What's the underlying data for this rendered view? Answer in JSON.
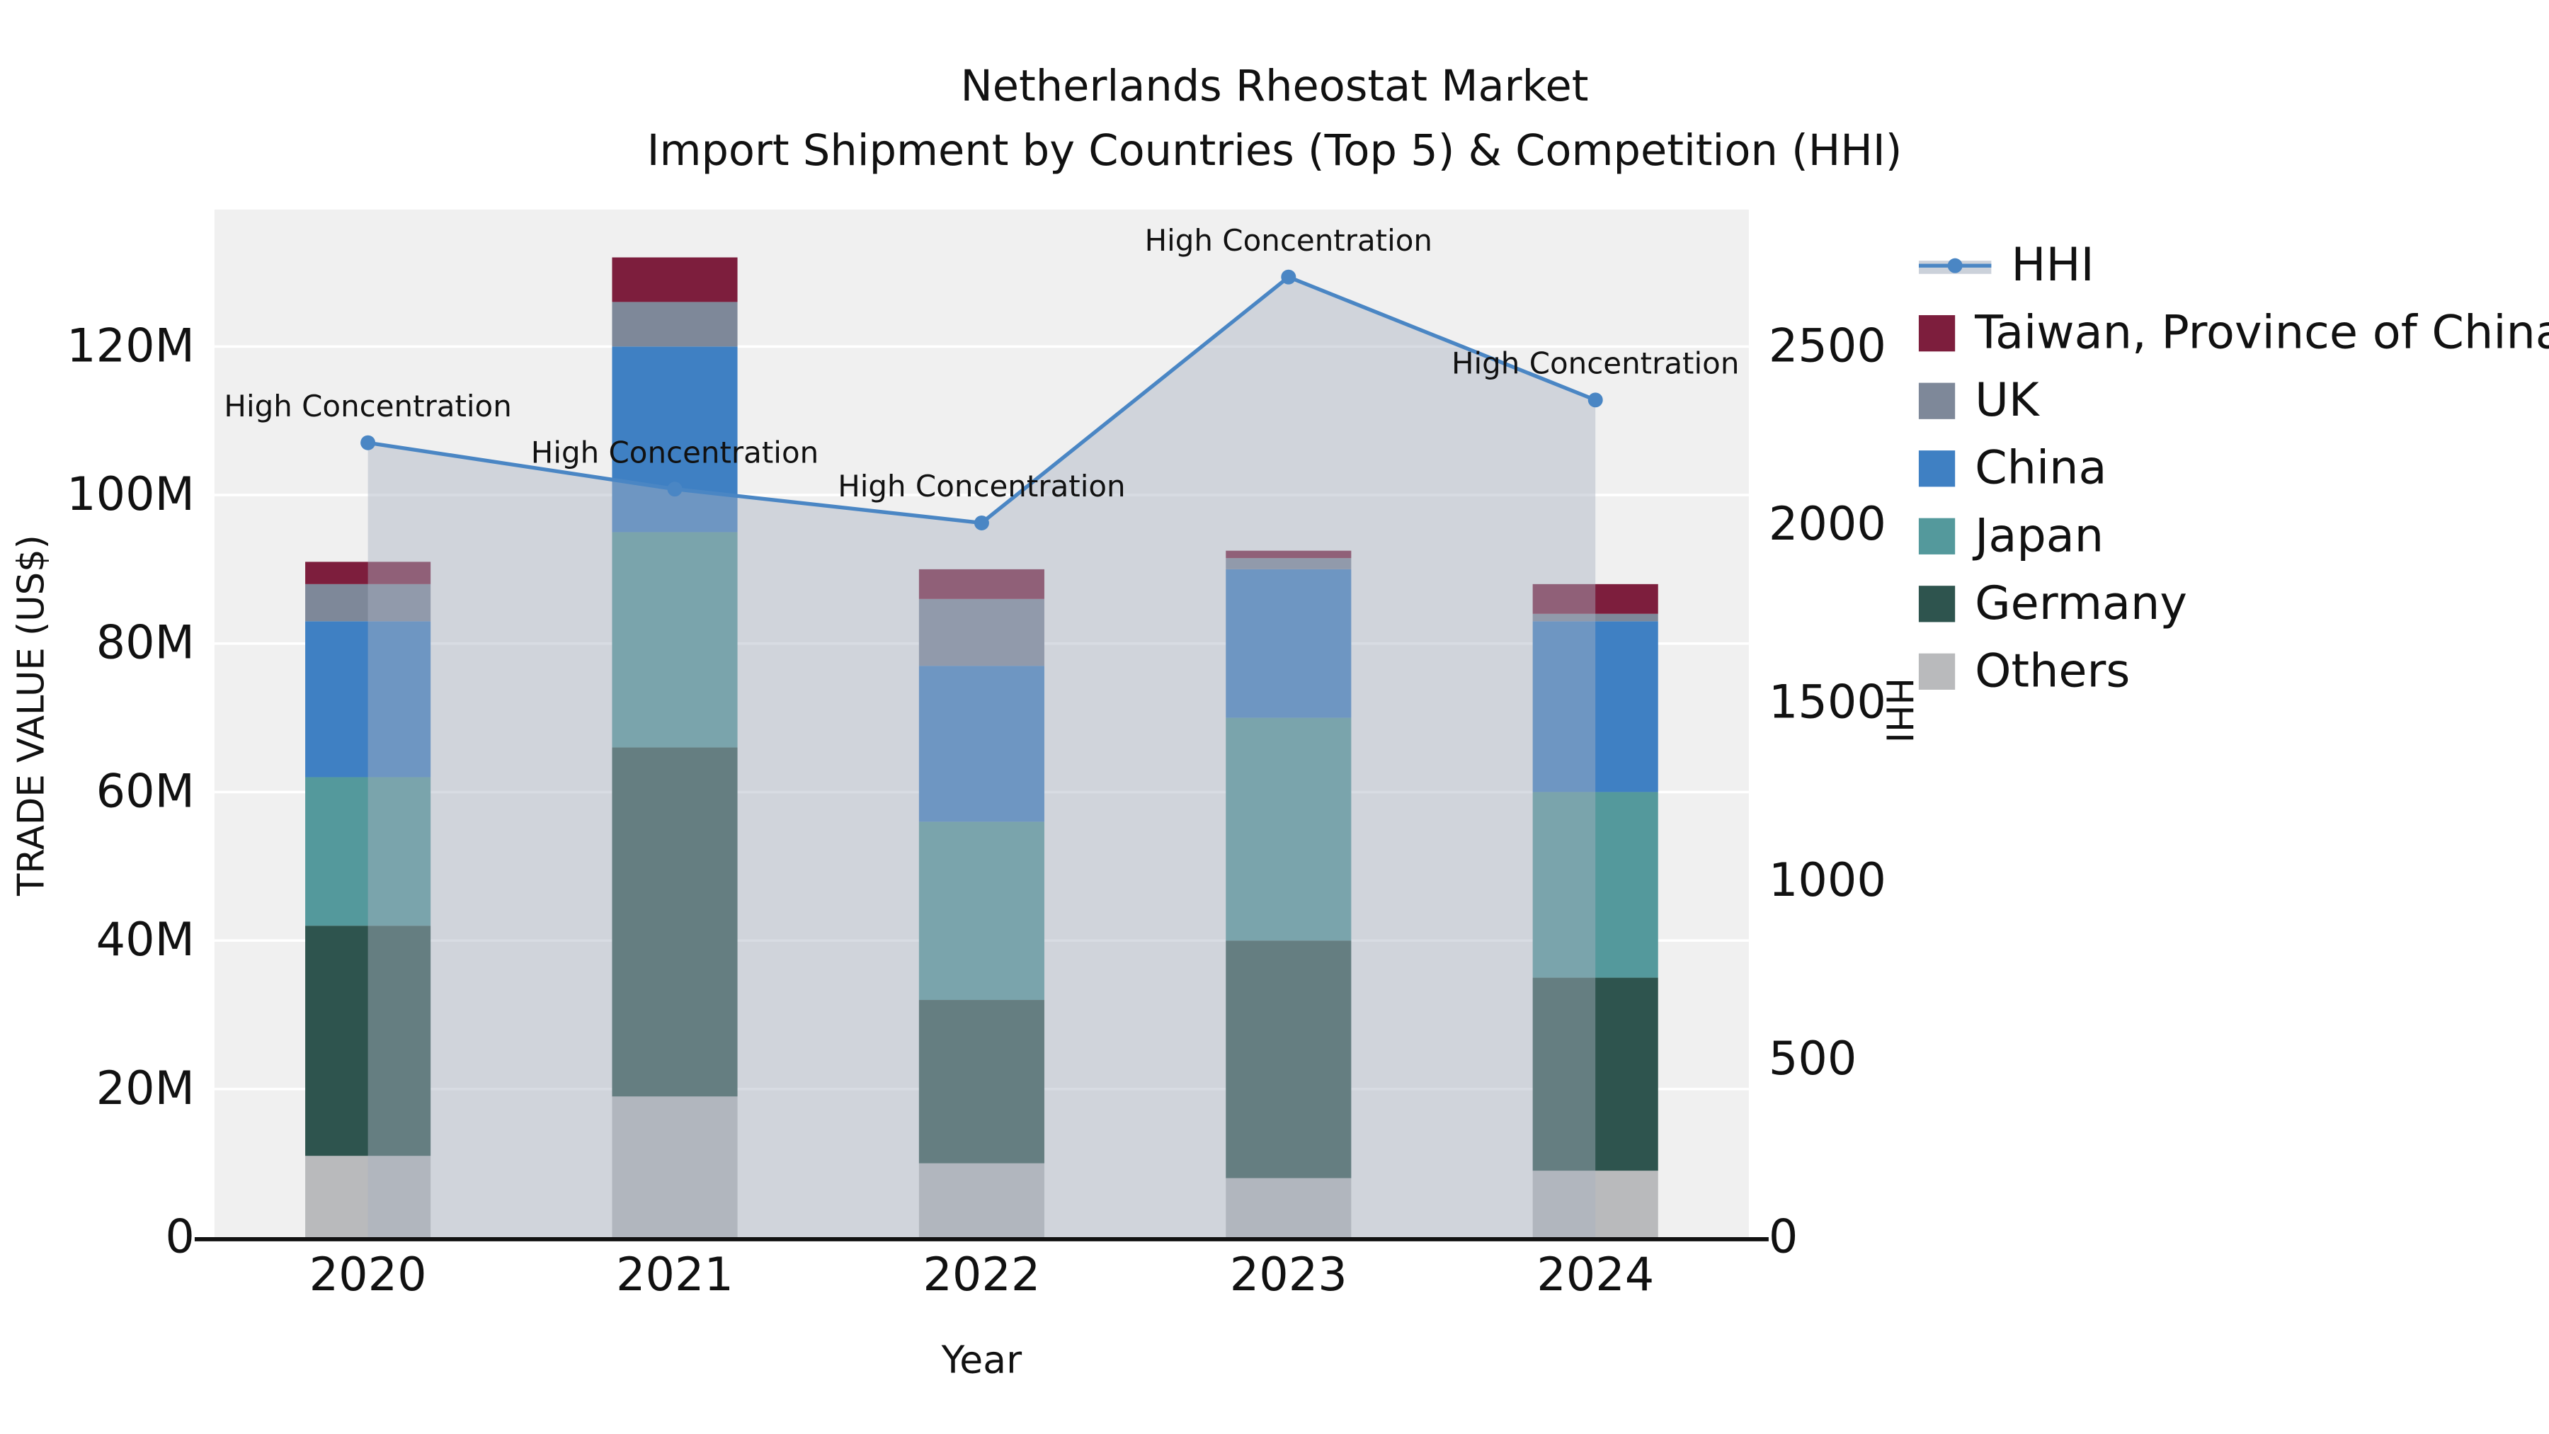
{
  "title": {
    "line1": "Netherlands Rheostat Market",
    "line2": "Import Shipment by Countries (Top 5) & Competition (HHI)"
  },
  "chart_data": {
    "type": "bar",
    "subtype": "stacked-bars-with-line-area-overlay",
    "value_unit": "M US$ (trade value), HHI index (line)",
    "categories": [
      "2020",
      "2021",
      "2022",
      "2023",
      "2024"
    ],
    "series": [
      {
        "name": "Others",
        "color": "#b9babc",
        "values": [
          11,
          19,
          10,
          8,
          9
        ]
      },
      {
        "name": "Germany",
        "color": "#2e544e",
        "values": [
          31,
          47,
          22,
          32,
          26
        ]
      },
      {
        "name": "Japan",
        "color": "#54999c",
        "values": [
          20,
          29,
          24,
          30,
          25
        ]
      },
      {
        "name": "China",
        "color": "#3f80c3",
        "values": [
          21,
          25,
          21,
          20,
          23
        ]
      },
      {
        "name": "UK",
        "color": "#7e8899",
        "values": [
          5,
          6,
          9,
          1.5,
          1
        ]
      },
      {
        "name": "Taiwan, Province of China",
        "color": "#7d1e3d",
        "values": [
          3,
          6,
          4,
          1,
          4
        ]
      }
    ],
    "line": {
      "name": "HHI",
      "color": "#4a86c4",
      "fill": "#a9b2c1",
      "fill_opacity": 0.45,
      "values": [
        2230,
        2100,
        2005,
        2695,
        2350
      ],
      "annotations": [
        "High Concentration",
        "High Concentration",
        "High Concentration",
        "High Concentration",
        "High Concentration"
      ]
    },
    "title": "Netherlands Rheostat Market Import Shipment by Countries (Top 5) & Competition (HHI)",
    "xlabel": "Year",
    "ylabel": "TRADE VALUE (US$)",
    "y2label": "HHI",
    "yticks": [
      "0",
      "20M",
      "40M",
      "60M",
      "80M",
      "100M",
      "120M"
    ],
    "y2ticks": [
      "0",
      "500",
      "1000",
      "1500",
      "2000",
      "2500"
    ],
    "ylim": [
      0,
      138
    ],
    "y2lim": [
      0,
      2880
    ],
    "grid": true,
    "plot_background": "#f0f0f0",
    "legend_position": "right",
    "legend_order": [
      "HHI",
      "Taiwan, Province of China",
      "UK",
      "China",
      "Japan",
      "Germany",
      "Others"
    ]
  }
}
